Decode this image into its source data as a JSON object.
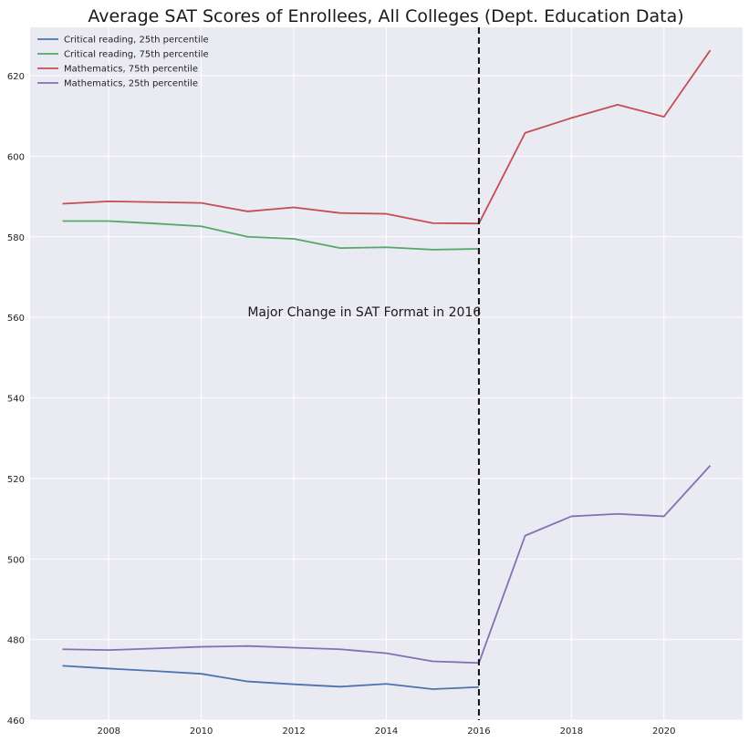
{
  "chart_data": {
    "type": "line",
    "title": "Average SAT Scores of Enrollees, All Colleges (Dept. Education Data)",
    "xlabel": "",
    "ylabel": "",
    "xlim": [
      2006.3,
      2021.7
    ],
    "ylim": [
      460,
      632
    ],
    "x_ticks": [
      2008,
      2010,
      2012,
      2014,
      2016,
      2018,
      2020
    ],
    "y_ticks": [
      460,
      480,
      500,
      520,
      540,
      560,
      580,
      600,
      620
    ],
    "grid": true,
    "legend_position": "top-left",
    "vline": {
      "x": 2016,
      "color": "#111111",
      "style": "dashed"
    },
    "annotation": {
      "text": "Major Change in SAT Format in 2016",
      "x": 2011,
      "y": 560
    },
    "series": [
      {
        "name": "Critical reading, 25th percentile",
        "color": "#4c72b0",
        "x": [
          2007,
          2008,
          2009,
          2010,
          2011,
          2012,
          2013,
          2014,
          2015,
          2016
        ],
        "values": [
          473.5,
          472.8,
          472.2,
          471.5,
          469.6,
          468.9,
          468.3,
          469.0,
          467.7,
          468.2
        ]
      },
      {
        "name": "Critical reading, 75th percentile",
        "color": "#55a868",
        "x": [
          2007,
          2008,
          2009,
          2010,
          2011,
          2012,
          2013,
          2014,
          2015,
          2016
        ],
        "values": [
          583.9,
          583.9,
          583.3,
          582.6,
          580.0,
          579.5,
          577.2,
          577.4,
          576.8,
          577.0
        ]
      },
      {
        "name": "Mathematics, 75th percentile",
        "color": "#c44e52",
        "x": [
          2007,
          2008,
          2009,
          2010,
          2011,
          2012,
          2013,
          2014,
          2015,
          2016,
          2017,
          2018,
          2019,
          2020,
          2021
        ],
        "values": [
          588.2,
          588.8,
          588.6,
          588.4,
          586.3,
          587.3,
          585.9,
          585.7,
          583.4,
          583.3,
          605.8,
          609.5,
          612.8,
          609.8,
          626.3
        ]
      },
      {
        "name": "Mathematics, 25th percentile",
        "color": "#8172b2",
        "x": [
          2007,
          2008,
          2009,
          2010,
          2011,
          2012,
          2013,
          2014,
          2015,
          2016,
          2017,
          2018,
          2019,
          2020,
          2021
        ],
        "values": [
          477.6,
          477.4,
          477.8,
          478.2,
          478.4,
          478.0,
          477.6,
          476.6,
          474.6,
          474.2,
          505.8,
          510.6,
          511.2,
          510.6,
          523.2
        ]
      }
    ]
  }
}
